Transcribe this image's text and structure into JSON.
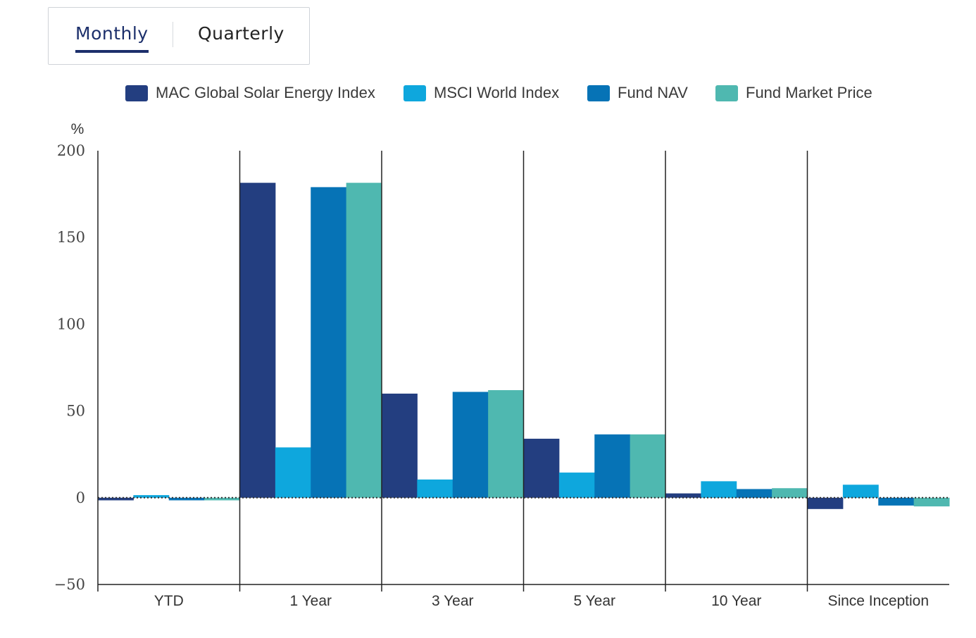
{
  "tabs": {
    "monthly": "Monthly",
    "quarterly": "Quarterly",
    "active": "monthly"
  },
  "chart_data": {
    "type": "bar",
    "title": "",
    "xlabel": "",
    "ylabel": "%",
    "ylim": [
      -50,
      200
    ],
    "yticks": [
      200,
      150,
      100,
      50,
      0,
      -50
    ],
    "ytick_labels": [
      "200",
      "150",
      "100",
      "50",
      "0",
      "−50"
    ],
    "categories": [
      "YTD",
      "1 Year",
      "3 Year",
      "5 Year",
      "10 Year",
      "Since Inception"
    ],
    "series": [
      {
        "name": "MAC Global Solar Energy Index",
        "color": "#233e80",
        "values": [
          -1.5,
          181.5,
          60,
          34,
          2.5,
          -6.5
        ]
      },
      {
        "name": "MSCI World Index",
        "color": "#0ea7dd",
        "values": [
          1.5,
          29,
          10.5,
          14.5,
          9.5,
          7.5
        ]
      },
      {
        "name": "Fund NAV",
        "color": "#0673b6",
        "values": [
          -1.5,
          179,
          61,
          36.5,
          5,
          -4.5
        ]
      },
      {
        "name": "Fund Market Price",
        "color": "#4fb8b0",
        "values": [
          -1.5,
          181.5,
          62,
          36.5,
          5.5,
          -5
        ]
      }
    ],
    "legend_position": "top-center",
    "grid": false
  }
}
